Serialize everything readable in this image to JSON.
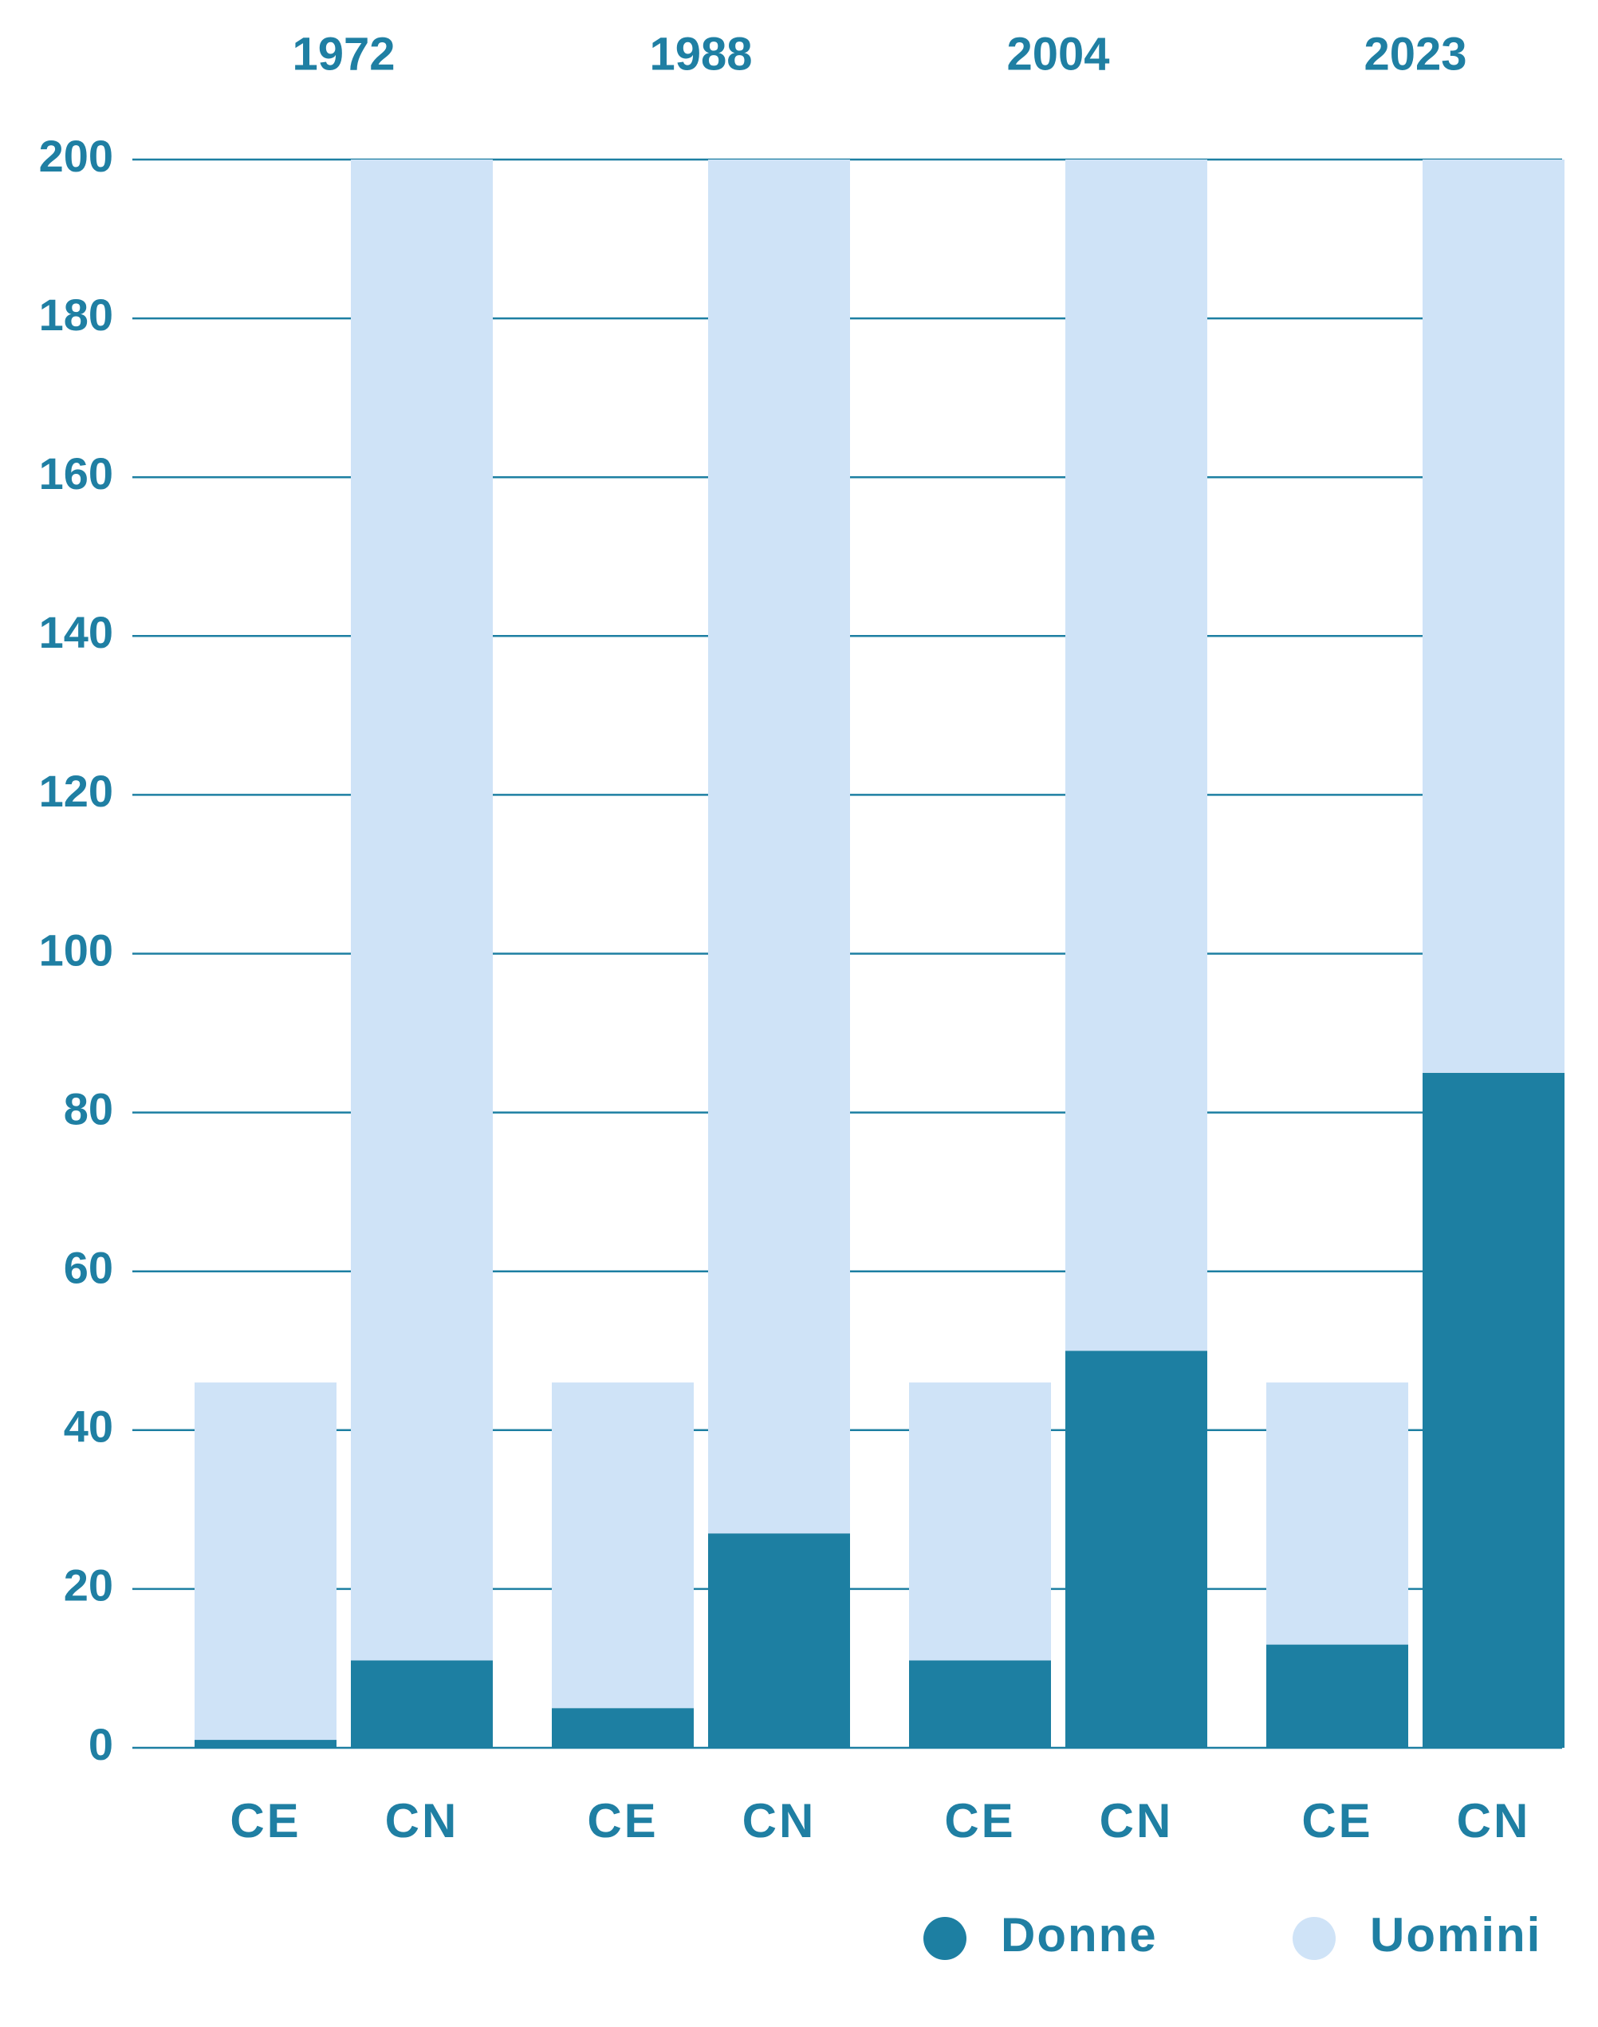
{
  "chart_data": {
    "type": "stacked_bar",
    "groups": [
      "1972",
      "1988",
      "2004",
      "2023"
    ],
    "categories": [
      "CE",
      "CN",
      "CE",
      "CN",
      "CE",
      "CN",
      "CE",
      "CN"
    ],
    "series": [
      {
        "name": "Donne",
        "color": "#1d7fa2",
        "values": [
          1,
          11,
          5,
          27,
          11,
          50,
          13,
          85
        ]
      },
      {
        "name": "Uomini",
        "color": "#cfe3f7",
        "values": [
          45,
          189,
          41,
          173,
          35,
          150,
          33,
          115
        ]
      }
    ],
    "ylim": [
      0,
      200
    ],
    "yticks": [
      0,
      20,
      40,
      60,
      80,
      100,
      120,
      140,
      160,
      180,
      200
    ],
    "grid": true,
    "legend": "bottom-right"
  }
}
